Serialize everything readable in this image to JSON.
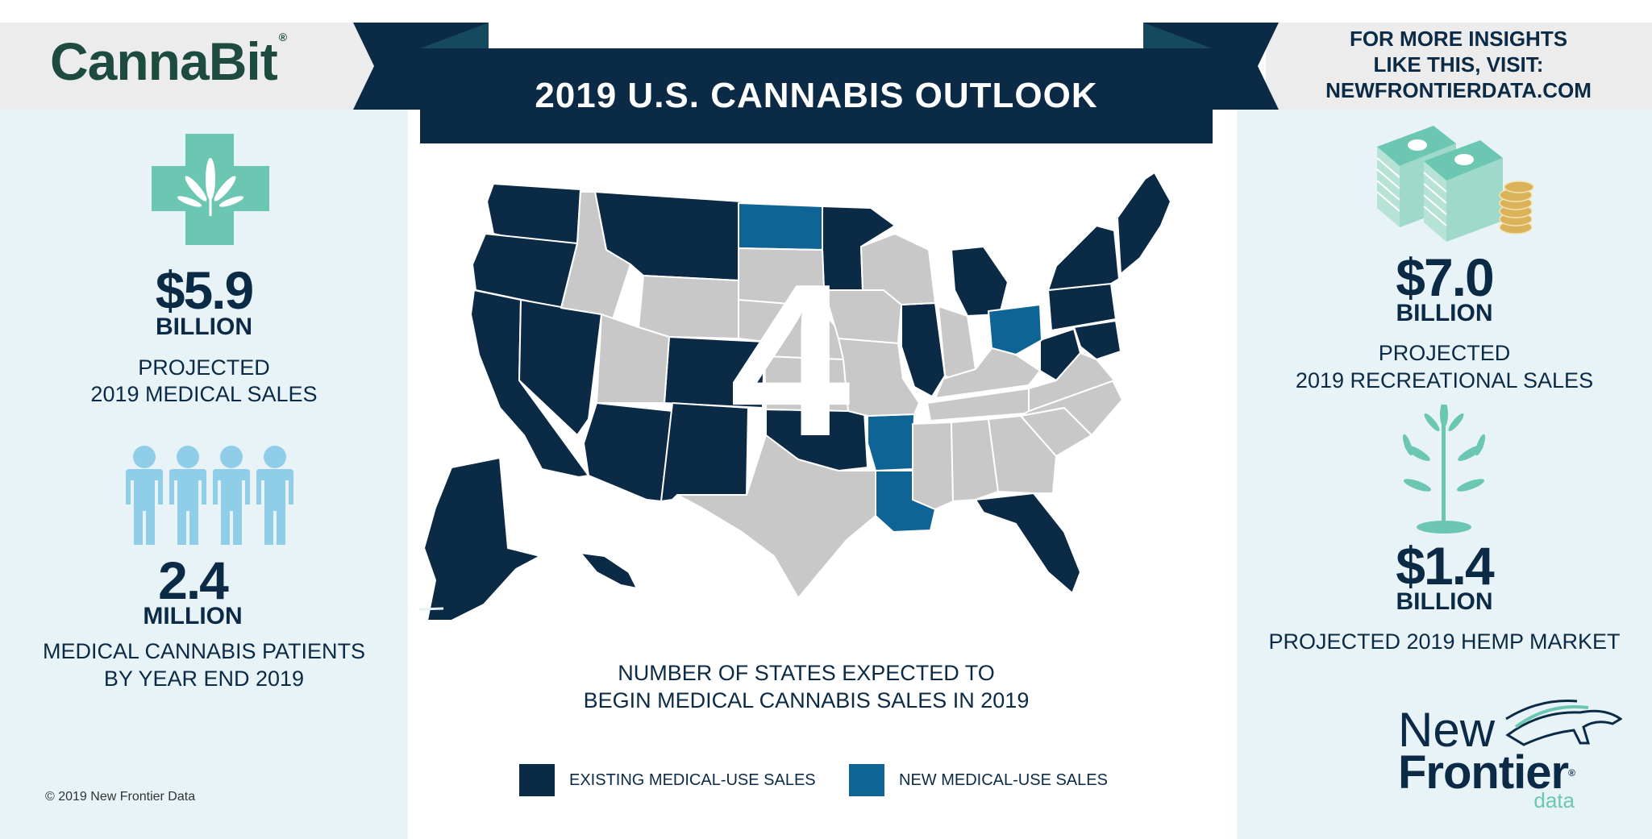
{
  "header": {
    "brand": "CannaBit",
    "brand_mark": "®",
    "title": "2019 U.S. CANNABIS OUTLOOK",
    "visit_line1": "FOR MORE INSIGHTS",
    "visit_line2": "LIKE THIS, VISIT:",
    "visit_line3": "NEWFRONTIERDATA.COM"
  },
  "left": {
    "medical_amount": "$5.9",
    "medical_unit": "BILLION",
    "medical_desc1": "PROJECTED",
    "medical_desc2": "2019 MEDICAL SALES",
    "patients_amount": "2.4",
    "patients_unit": "MILLION",
    "patients_desc1": "MEDICAL CANNABIS PATIENTS",
    "patients_desc2": "BY YEAR END 2019",
    "copyright": "© 2019  New Frontier Data"
  },
  "right": {
    "rec_amount": "$7.0",
    "rec_unit": "BILLION",
    "rec_desc1": "PROJECTED",
    "rec_desc2": "2019 RECREATIONAL SALES",
    "hemp_amount": "$1.4",
    "hemp_unit": "BILLION",
    "hemp_desc": "PROJECTED 2019 HEMP MARKET",
    "logo_new": "New",
    "logo_frontier": "Frontier",
    "logo_data": "data",
    "logo_mark": "®"
  },
  "map": {
    "big_number": "4",
    "caption1": "NUMBER OF STATES EXPECTED TO",
    "caption2": "BEGIN MEDICAL CANNABIS SALES IN 2019",
    "legend": [
      {
        "label": "EXISTING MEDICAL-USE SALES",
        "color": "#0b2a45"
      },
      {
        "label": "NEW MEDICAL-USE SALES",
        "color": "#0e6494"
      }
    ],
    "other_color": "#c8c8c8"
  },
  "colors": {
    "navy": "#0b2a45",
    "teal_blue": "#0e6494",
    "mint": "#6cc7b2",
    "sky": "#8fcde8",
    "gold": "#d9b25a"
  },
  "icons": [
    "medical-cross-leaf-icon",
    "people-icon",
    "money-stack-icon",
    "hemp-plant-icon",
    "horse-logo-icon"
  ]
}
